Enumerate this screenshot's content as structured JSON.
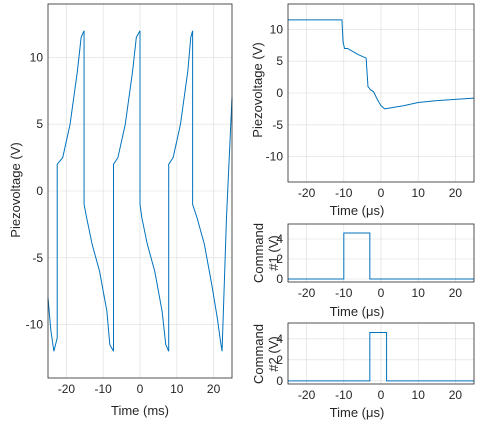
{
  "chart_data": [
    {
      "id": "main",
      "type": "line",
      "xlabel": "Time (ms)",
      "ylabel": "Piezovoltage (V)",
      "xlim": [
        -25,
        25
      ],
      "ylim": [
        -14,
        14
      ],
      "xticks": [
        -20,
        -10,
        0,
        10,
        20
      ],
      "yticks": [
        -10,
        -5,
        0,
        5,
        10
      ],
      "grid": true,
      "color": "#0072BD",
      "series": [
        {
          "x": [
            -25.0,
            -24.2,
            -23.4,
            -22.5,
            -22.5,
            -21.0,
            -19.0,
            -17.0,
            -16.0,
            -15.2,
            -15.2,
            -14.5,
            -13.0,
            -11.0,
            -9.0,
            -8.2,
            -7.2,
            -7.2,
            -6.0,
            -4.0,
            -2.0,
            -1.0,
            0.0,
            0.0,
            0.5,
            2.0,
            4.0,
            6.0,
            7.0,
            7.8,
            7.8,
            9.0,
            11.0,
            13.0,
            13.8,
            14.3,
            14.3,
            15.5,
            17.5,
            19.5,
            21.0,
            22.0,
            22.3,
            23.5,
            25.0
          ],
          "y": [
            -8.0,
            -10.5,
            -12.0,
            -11.0,
            2.0,
            2.5,
            5.0,
            9.0,
            11.5,
            12.0,
            -1.0,
            -2.0,
            -4.0,
            -6.0,
            -9.0,
            -11.5,
            -12.0,
            2.0,
            2.5,
            5.0,
            9.0,
            11.5,
            12.0,
            -1.0,
            -2.0,
            -4.0,
            -6.0,
            -9.0,
            -11.5,
            -12.0,
            2.0,
            2.5,
            5.0,
            9.0,
            11.5,
            12.0,
            -1.0,
            -2.0,
            -4.0,
            -7.0,
            -9.5,
            -11.5,
            -12.0,
            -2.0,
            7.0
          ]
        }
      ]
    },
    {
      "id": "right-top",
      "type": "line",
      "xlabel": "Time (μs)",
      "ylabel": "Piezovoltage (V)",
      "xlim": [
        -25,
        25
      ],
      "ylim": [
        -14,
        14
      ],
      "xticks": [
        -20,
        -10,
        0,
        10,
        20
      ],
      "yticks": [
        -10,
        -5,
        0,
        5,
        10
      ],
      "grid": true,
      "color": "#0072BD",
      "series": [
        {
          "x": [
            -25.0,
            -20.0,
            -15.0,
            -10.5,
            -10.2,
            -9.8,
            -9.0,
            -7.5,
            -6.0,
            -4.0,
            -3.5,
            -3.2,
            -2.8,
            -2.0,
            -1.0,
            0.0,
            1.0,
            3.0,
            6.0,
            10.0,
            15.0,
            20.0,
            25.0
          ],
          "y": [
            11.5,
            11.5,
            11.5,
            11.5,
            8.0,
            7.0,
            7.0,
            6.5,
            6.0,
            5.5,
            1.0,
            0.8,
            0.5,
            0.2,
            -1.0,
            -2.0,
            -2.5,
            -2.3,
            -2.0,
            -1.5,
            -1.2,
            -1.0,
            -0.8
          ]
        }
      ]
    },
    {
      "id": "right-mid",
      "type": "line",
      "xlabel": "Time (μs)",
      "ylabel_lines": [
        "Command",
        "#1 (V)"
      ],
      "xlim": [
        -25,
        25
      ],
      "ylim": [
        -0.3,
        5.5
      ],
      "xticks": [
        -20,
        -10,
        0,
        10,
        20
      ],
      "yticks": [
        0,
        2,
        4
      ],
      "grid": true,
      "color": "#0072BD",
      "series": [
        {
          "x": [
            -25.0,
            -10.0,
            -10.0,
            -3.0,
            -3.0,
            25.0
          ],
          "y": [
            0.0,
            0.0,
            4.6,
            4.6,
            0.0,
            0.0
          ]
        }
      ]
    },
    {
      "id": "right-bot",
      "type": "line",
      "xlabel": "Time (μs)",
      "ylabel_lines": [
        "Command",
        "#2 (V)"
      ],
      "xlim": [
        -25,
        25
      ],
      "ylim": [
        -0.3,
        5.5
      ],
      "xticks": [
        -20,
        -10,
        0,
        10,
        20
      ],
      "yticks": [
        0,
        2,
        4
      ],
      "grid": true,
      "color": "#0072BD",
      "series": [
        {
          "x": [
            -25.0,
            -3.0,
            -3.0,
            1.5,
            1.5,
            25.0
          ],
          "y": [
            0.0,
            0.0,
            4.6,
            4.6,
            0.0,
            0.0
          ]
        }
      ]
    }
  ]
}
